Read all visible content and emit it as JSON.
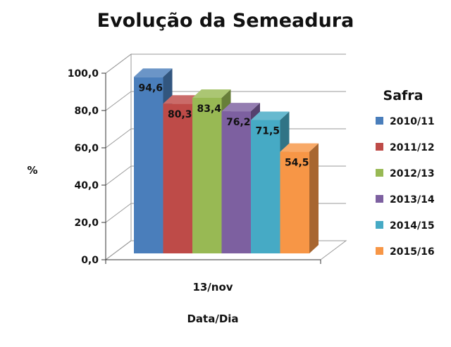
{
  "chart_data": {
    "type": "bar",
    "title": "Evolução da Semeadura",
    "xlabel": "Data/Dia",
    "ylabel": "%",
    "categories": [
      "13/nov"
    ],
    "ylim": [
      0,
      100
    ],
    "yticks": [
      "0,0",
      "20,0",
      "40,0",
      "60,0",
      "80,0",
      "100,0"
    ],
    "legend_title": "Safra",
    "legend_position": "right",
    "grid": true,
    "series": [
      {
        "name": "2010/11",
        "values": [
          94.6
        ],
        "label": "94,6",
        "color": "#4a7ebb"
      },
      {
        "name": "2011/12",
        "values": [
          80.3
        ],
        "label": "80,3",
        "color": "#be4b48"
      },
      {
        "name": "2012/13",
        "values": [
          83.4
        ],
        "label": "83,4",
        "color": "#98b954"
      },
      {
        "name": "2013/14",
        "values": [
          76.2
        ],
        "label": "76,2",
        "color": "#7d60a0"
      },
      {
        "name": "2014/15",
        "values": [
          71.5
        ],
        "label": "71,5",
        "color": "#46aac5"
      },
      {
        "name": "2015/16",
        "values": [
          54.5
        ],
        "label": "54,5",
        "color": "#f79646"
      }
    ]
  }
}
